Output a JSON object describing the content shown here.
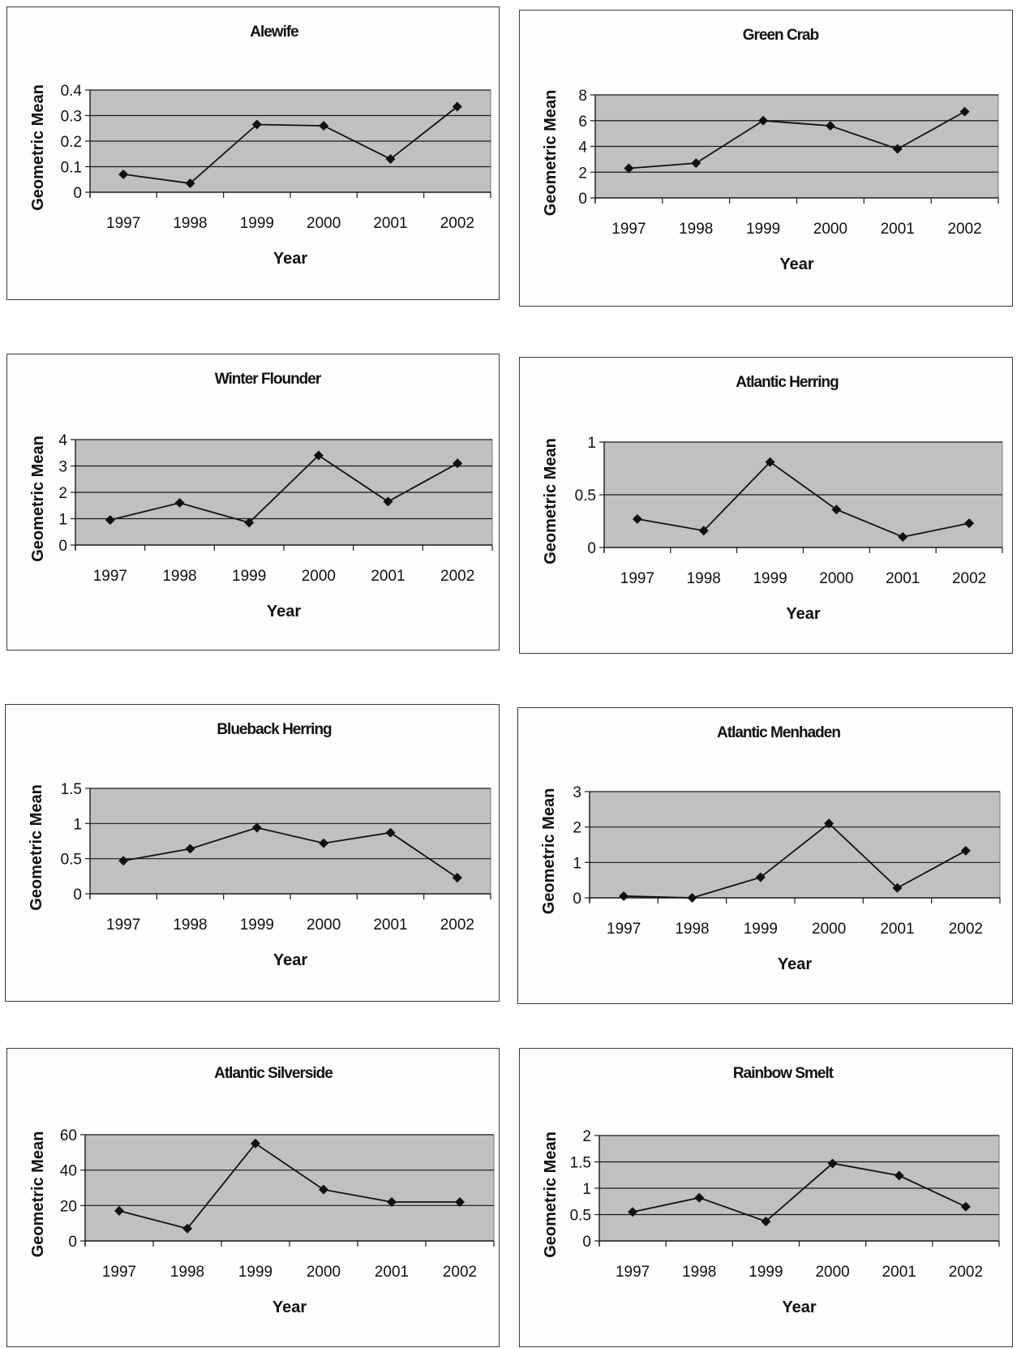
{
  "chart_data": [
    {
      "type": "line",
      "title": "Alewife",
      "xlabel": "Year",
      "ylabel": "Geometric Mean",
      "categories": [
        "1997",
        "1998",
        "1999",
        "2000",
        "2001",
        "2002"
      ],
      "values": [
        0.07,
        0.035,
        0.265,
        0.26,
        0.13,
        0.335
      ],
      "ylim": [
        0,
        0.4
      ],
      "yticks": [
        "0",
        "0.1",
        "0.2",
        "0.3",
        "0.4"
      ],
      "grid": true
    },
    {
      "type": "line",
      "title": "Green Crab",
      "xlabel": "Year",
      "ylabel": "Geometric Mean",
      "categories": [
        "1997",
        "1998",
        "1999",
        "2000",
        "2001",
        "2002"
      ],
      "values": [
        2.3,
        2.7,
        6.0,
        5.6,
        3.8,
        6.7
      ],
      "ylim": [
        0,
        8
      ],
      "yticks": [
        "0",
        "2",
        "4",
        "6",
        "8"
      ],
      "grid": true
    },
    {
      "type": "line",
      "title": "Winter Flounder",
      "xlabel": "Year",
      "ylabel": "Geometric Mean",
      "categories": [
        "1997",
        "1998",
        "1999",
        "2000",
        "2001",
        "2002"
      ],
      "values": [
        0.95,
        1.6,
        0.85,
        3.4,
        1.65,
        3.1
      ],
      "ylim": [
        0,
        4
      ],
      "yticks": [
        "0",
        "1",
        "2",
        "3",
        "4"
      ],
      "grid": true
    },
    {
      "type": "line",
      "title": "Atlantic Herring",
      "xlabel": "Year",
      "ylabel": "Geometric Mean",
      "categories": [
        "1997",
        "1998",
        "1999",
        "2000",
        "2001",
        "2002"
      ],
      "values": [
        0.27,
        0.16,
        0.81,
        0.36,
        0.1,
        0.23
      ],
      "ylim": [
        0,
        1
      ],
      "yticks": [
        "0",
        "0.5",
        "1"
      ],
      "grid": true
    },
    {
      "type": "line",
      "title": "Blueback Herring",
      "xlabel": "Year",
      "ylabel": "Geometric Mean",
      "categories": [
        "1997",
        "1998",
        "1999",
        "2000",
        "2001",
        "2002"
      ],
      "values": [
        0.47,
        0.64,
        0.94,
        0.72,
        0.87,
        0.23
      ],
      "ylim": [
        0,
        1.5
      ],
      "yticks": [
        "0",
        "0.5",
        "1",
        "1.5"
      ],
      "grid": true
    },
    {
      "type": "line",
      "title": "Atlantic Menhaden",
      "xlabel": "Year",
      "ylabel": "Geometric Mean",
      "categories": [
        "1997",
        "1998",
        "1999",
        "2000",
        "2001",
        "2002"
      ],
      "values": [
        0.05,
        0.0,
        0.58,
        2.1,
        0.28,
        1.33
      ],
      "ylim": [
        0,
        3
      ],
      "yticks": [
        "0",
        "1",
        "2",
        "3"
      ],
      "grid": true
    },
    {
      "type": "line",
      "title": "Atlantic Silverside",
      "xlabel": "Year",
      "ylabel": "Geometric Mean",
      "categories": [
        "1997",
        "1998",
        "1999",
        "2000",
        "2001",
        "2002"
      ],
      "values": [
        17,
        7,
        55,
        29,
        22,
        22
      ],
      "ylim": [
        0,
        60
      ],
      "yticks": [
        "0",
        "20",
        "40",
        "60"
      ],
      "grid": true
    },
    {
      "type": "line",
      "title": "Rainbow Smelt",
      "xlabel": "Year",
      "ylabel": "Geometric Mean",
      "categories": [
        "1997",
        "1998",
        "1999",
        "2000",
        "2001",
        "2002"
      ],
      "values": [
        0.55,
        0.82,
        0.37,
        1.47,
        1.24,
        0.65
      ],
      "ylim": [
        0,
        2
      ],
      "yticks": [
        "0",
        "0.5",
        "1",
        "1.5",
        "2"
      ],
      "grid": true
    }
  ]
}
